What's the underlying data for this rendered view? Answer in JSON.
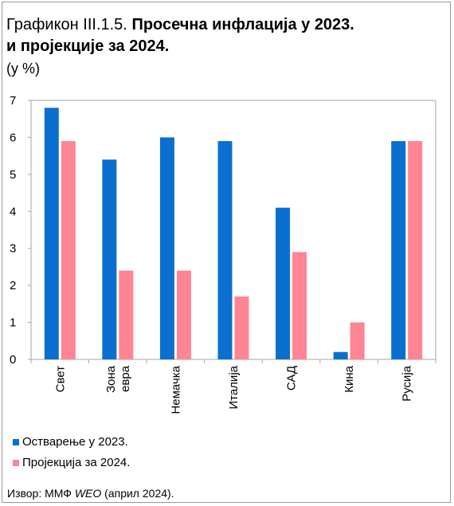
{
  "title": {
    "prefix": "Графикон III.1.5.",
    "line1_bold": "Просечна инфлација у 2023.",
    "line2_bold": "и пројекције  за 2024."
  },
  "unit": "(у %)",
  "chart_data": {
    "type": "bar",
    "categories": [
      "Свет",
      "Зона евра",
      "Немачка",
      "Италија",
      "САД",
      "Кина",
      "Русија"
    ],
    "category_lines": [
      [
        "Свет"
      ],
      [
        "Зона",
        "евра"
      ],
      [
        "Немачка"
      ],
      [
        "Италија"
      ],
      [
        "САД"
      ],
      [
        "Кина"
      ],
      [
        "Русија"
      ]
    ],
    "series": [
      {
        "name": "Остварење у 2023.",
        "color": "#0b6fcf",
        "values": [
          6.8,
          5.4,
          6.0,
          5.9,
          4.1,
          0.2,
          5.9
        ]
      },
      {
        "name": "Пројекција за 2024.",
        "color": "#ff8494",
        "values": [
          5.9,
          2.4,
          2.4,
          1.7,
          2.9,
          1.0,
          5.9
        ]
      }
    ],
    "yticks": [
      0,
      1,
      2,
      3,
      4,
      5,
      6,
      7
    ],
    "ylim": [
      0,
      7
    ],
    "grid": false,
    "legend_position": "bottom"
  },
  "legend": [
    {
      "label": "Остварење у 2023.",
      "color": "#0b6fcf"
    },
    {
      "label": "Пројекција за 2024.",
      "color": "#ff8494"
    }
  ],
  "source": {
    "prefix": "Извор: ММФ ",
    "italic": "WEO",
    "suffix": " (април 2024)."
  }
}
